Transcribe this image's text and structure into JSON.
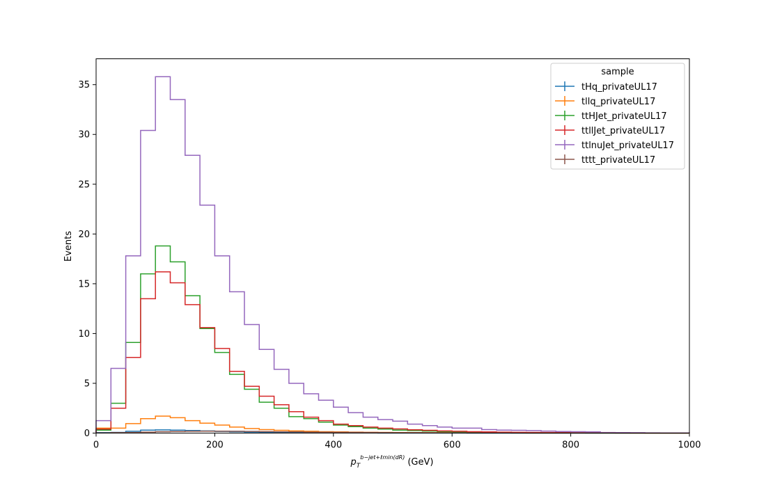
{
  "chart_data": {
    "type": "histogram-step",
    "ylabel": "Events",
    "xlabel": {
      "base": "p",
      "sub": "T",
      "sup": "b−jet+ℓmin(dR)",
      "unit": "(GeV)"
    },
    "xlim": [
      0,
      1000
    ],
    "ylim": [
      0,
      37.6
    ],
    "xticks": [
      0,
      200,
      400,
      600,
      800,
      1000
    ],
    "yticks": [
      0,
      5,
      10,
      15,
      20,
      25,
      30,
      35
    ],
    "grid": false,
    "legend": {
      "title": "sample",
      "placement": "top-right"
    },
    "bin_edges": [
      0,
      25,
      50,
      75,
      100,
      125,
      150,
      175,
      200,
      225,
      250,
      275,
      300,
      325,
      350,
      375,
      400,
      425,
      450,
      475,
      500,
      525,
      550,
      575,
      600,
      625,
      650,
      675,
      700,
      725,
      750,
      775,
      800,
      825,
      850,
      875,
      900,
      925,
      950,
      975,
      1000
    ],
    "series": [
      {
        "name": "tHq_privateUL17",
        "color": "#1f77b4",
        "values": [
          0.05,
          0.07,
          0.18,
          0.3,
          0.32,
          0.3,
          0.26,
          0.22,
          0.17,
          0.13,
          0.1,
          0.08,
          0.06,
          0.05,
          0.04,
          0.03,
          0.02,
          0.02,
          0.015,
          0.01,
          0.01,
          0.01,
          0.005,
          0.005,
          0.005,
          0,
          0,
          0,
          0,
          0,
          0,
          0,
          0,
          0,
          0,
          0,
          0,
          0,
          0,
          0
        ]
      },
      {
        "name": "tllq_privateUL17",
        "color": "#ff7f0e",
        "values": [
          0.5,
          0.5,
          0.95,
          1.45,
          1.7,
          1.55,
          1.25,
          1.0,
          0.8,
          0.6,
          0.45,
          0.35,
          0.28,
          0.22,
          0.18,
          0.14,
          0.12,
          0.1,
          0.08,
          0.07,
          0.06,
          0.05,
          0.04,
          0.04,
          0.03,
          0.03,
          0.02,
          0.02,
          0.02,
          0.01,
          0.01,
          0.01,
          0.01,
          0.01,
          0.01,
          0.01,
          0,
          0,
          0,
          0
        ]
      },
      {
        "name": "ttHJet_privateUL17",
        "color": "#2ca02c",
        "values": [
          0.3,
          3.0,
          9.1,
          16.0,
          18.8,
          17.2,
          13.8,
          10.5,
          8.1,
          5.9,
          4.4,
          3.1,
          2.5,
          1.65,
          1.45,
          1.1,
          0.8,
          0.65,
          0.5,
          0.4,
          0.3,
          0.25,
          0.2,
          0.15,
          0.12,
          0.1,
          0.07,
          0.06,
          0.05,
          0.04,
          0.03,
          0.02,
          0.02,
          0.01,
          0.01,
          0.01,
          0.01,
          0,
          0,
          0
        ]
      },
      {
        "name": "ttllJet_privateUL17",
        "color": "#d62728",
        "values": [
          0.4,
          2.5,
          7.6,
          13.5,
          16.2,
          15.1,
          12.9,
          10.6,
          8.5,
          6.2,
          4.7,
          3.7,
          2.85,
          2.15,
          1.6,
          1.25,
          0.9,
          0.75,
          0.6,
          0.5,
          0.42,
          0.33,
          0.28,
          0.22,
          0.18,
          0.14,
          0.12,
          0.1,
          0.08,
          0.07,
          0.06,
          0.05,
          0.04,
          0.03,
          0.03,
          0.02,
          0.02,
          0.01,
          0.01,
          0.01
        ]
      },
      {
        "name": "ttlnuJet_privateUL17",
        "color": "#9467bd",
        "values": [
          1.25,
          6.5,
          17.8,
          30.4,
          35.8,
          33.5,
          27.9,
          22.9,
          17.8,
          14.2,
          10.9,
          8.4,
          6.4,
          5.0,
          3.95,
          3.3,
          2.6,
          2.05,
          1.6,
          1.35,
          1.2,
          0.9,
          0.75,
          0.6,
          0.5,
          0.5,
          0.35,
          0.3,
          0.28,
          0.25,
          0.2,
          0.16,
          0.14,
          0.12,
          0.06,
          0.05,
          0.04,
          0.03,
          0.02,
          0.02
        ]
      },
      {
        "name": "tttt_privateUL17",
        "color": "#8c564b",
        "values": [
          0.02,
          0.04,
          0.06,
          0.1,
          0.14,
          0.16,
          0.18,
          0.19,
          0.19,
          0.18,
          0.17,
          0.15,
          0.13,
          0.12,
          0.1,
          0.09,
          0.08,
          0.07,
          0.06,
          0.05,
          0.045,
          0.04,
          0.035,
          0.03,
          0.025,
          0.02,
          0.02,
          0.015,
          0.01,
          0.01,
          0.01,
          0.01,
          0.005,
          0.005,
          0.005,
          0,
          0,
          0,
          0,
          0
        ]
      }
    ]
  }
}
